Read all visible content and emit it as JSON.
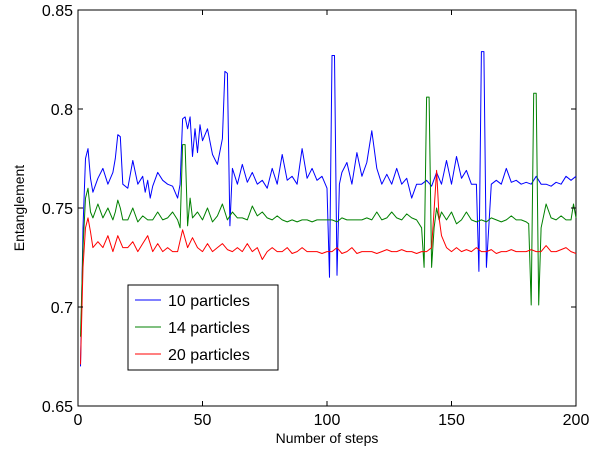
{
  "chart_data": {
    "type": "line",
    "title": "",
    "xlabel": "Number of steps",
    "ylabel": "Entanglement",
    "xlim": [
      0,
      200
    ],
    "ylim": [
      0.65,
      0.85
    ],
    "xticks": [
      0,
      50,
      100,
      150,
      200
    ],
    "yticks": [
      0.65,
      0.7,
      0.75,
      0.8,
      0.85
    ],
    "xtick_labels": [
      "0",
      "50",
      "100",
      "150",
      "200"
    ],
    "ytick_labels": [
      "0.65",
      "0.7",
      "0.75",
      "0.8",
      "0.85"
    ],
    "grid": false,
    "legend_position": "lower-left",
    "series": [
      {
        "name": "10 particles",
        "color": "#0000ff",
        "x": [
          1,
          2,
          3,
          4,
          5,
          6,
          8,
          10,
          12,
          14,
          15,
          16,
          17,
          18,
          20,
          22,
          24,
          26,
          27,
          28,
          29,
          30,
          32,
          34,
          36,
          38,
          40,
          41,
          42,
          43,
          44,
          45,
          46,
          47,
          48,
          49,
          50,
          52,
          54,
          56,
          58,
          59,
          60,
          61,
          62,
          64,
          66,
          68,
          70,
          72,
          74,
          76,
          78,
          80,
          82,
          84,
          86,
          88,
          90,
          92,
          94,
          96,
          98,
          100,
          101,
          102,
          103,
          104,
          105,
          106,
          108,
          110,
          112,
          114,
          116,
          118,
          120,
          122,
          124,
          126,
          128,
          130,
          132,
          134,
          136,
          138,
          140,
          142,
          144,
          146,
          148,
          150,
          152,
          154,
          156,
          158,
          160,
          161,
          162,
          163,
          164,
          166,
          168,
          170,
          172,
          174,
          176,
          178,
          180,
          182,
          184,
          186,
          188,
          190,
          192,
          194,
          196,
          198,
          200
        ],
        "y": [
          0.67,
          0.74,
          0.775,
          0.78,
          0.765,
          0.758,
          0.765,
          0.77,
          0.762,
          0.768,
          0.775,
          0.787,
          0.786,
          0.762,
          0.76,
          0.774,
          0.762,
          0.766,
          0.758,
          0.764,
          0.755,
          0.761,
          0.768,
          0.764,
          0.762,
          0.761,
          0.755,
          0.762,
          0.795,
          0.796,
          0.79,
          0.796,
          0.776,
          0.79,
          0.778,
          0.792,
          0.784,
          0.79,
          0.777,
          0.772,
          0.785,
          0.819,
          0.818,
          0.741,
          0.77,
          0.762,
          0.772,
          0.763,
          0.768,
          0.762,
          0.764,
          0.76,
          0.77,
          0.762,
          0.777,
          0.764,
          0.766,
          0.762,
          0.78,
          0.765,
          0.77,
          0.764,
          0.766,
          0.76,
          0.715,
          0.827,
          0.827,
          0.716,
          0.762,
          0.768,
          0.773,
          0.762,
          0.778,
          0.766,
          0.773,
          0.789,
          0.77,
          0.762,
          0.767,
          0.762,
          0.77,
          0.762,
          0.765,
          0.755,
          0.762,
          0.762,
          0.764,
          0.761,
          0.768,
          0.762,
          0.774,
          0.762,
          0.776,
          0.765,
          0.769,
          0.762,
          0.762,
          0.718,
          0.829,
          0.829,
          0.72,
          0.762,
          0.764,
          0.762,
          0.77,
          0.763,
          0.764,
          0.762,
          0.763,
          0.762,
          0.766,
          0.762,
          0.762,
          0.761,
          0.763,
          0.762,
          0.766,
          0.764,
          0.766
        ]
      },
      {
        "name": "14 particles",
        "color": "#008000",
        "x": [
          1,
          2,
          3,
          4,
          5,
          6,
          8,
          10,
          12,
          14,
          15,
          16,
          17,
          18,
          20,
          22,
          24,
          26,
          28,
          30,
          32,
          34,
          36,
          38,
          40,
          41,
          42,
          43,
          44,
          45,
          46,
          48,
          50,
          52,
          54,
          56,
          58,
          60,
          62,
          64,
          66,
          68,
          70,
          72,
          74,
          76,
          78,
          80,
          82,
          84,
          86,
          88,
          90,
          92,
          94,
          96,
          98,
          100,
          102,
          104,
          106,
          108,
          110,
          112,
          114,
          116,
          118,
          120,
          122,
          124,
          126,
          128,
          130,
          132,
          134,
          136,
          138,
          139,
          140,
          141,
          142,
          143,
          144,
          145,
          146,
          148,
          150,
          152,
          154,
          156,
          158,
          160,
          162,
          164,
          166,
          168,
          170,
          172,
          174,
          176,
          178,
          180,
          181,
          182,
          183,
          184,
          185,
          186,
          188,
          190,
          192,
          194,
          196,
          198,
          199,
          200
        ],
        "y": [
          0.685,
          0.73,
          0.755,
          0.76,
          0.748,
          0.745,
          0.752,
          0.745,
          0.75,
          0.744,
          0.748,
          0.754,
          0.75,
          0.744,
          0.744,
          0.75,
          0.743,
          0.746,
          0.744,
          0.744,
          0.748,
          0.744,
          0.745,
          0.748,
          0.744,
          0.74,
          0.782,
          0.782,
          0.741,
          0.755,
          0.745,
          0.748,
          0.744,
          0.75,
          0.743,
          0.746,
          0.752,
          0.744,
          0.748,
          0.745,
          0.745,
          0.744,
          0.751,
          0.746,
          0.748,
          0.745,
          0.744,
          0.746,
          0.744,
          0.743,
          0.744,
          0.743,
          0.744,
          0.744,
          0.743,
          0.744,
          0.744,
          0.744,
          0.744,
          0.743,
          0.745,
          0.744,
          0.744,
          0.744,
          0.744,
          0.745,
          0.744,
          0.748,
          0.744,
          0.745,
          0.748,
          0.745,
          0.744,
          0.747,
          0.745,
          0.744,
          0.74,
          0.72,
          0.806,
          0.806,
          0.72,
          0.74,
          0.75,
          0.744,
          0.748,
          0.744,
          0.748,
          0.742,
          0.744,
          0.748,
          0.744,
          0.743,
          0.744,
          0.743,
          0.745,
          0.744,
          0.743,
          0.744,
          0.746,
          0.744,
          0.744,
          0.743,
          0.742,
          0.701,
          0.808,
          0.808,
          0.701,
          0.74,
          0.752,
          0.745,
          0.744,
          0.746,
          0.744,
          0.744,
          0.752,
          0.745
        ]
      },
      {
        "name": "20 particles",
        "color": "#ff0000",
        "x": [
          1,
          2,
          3,
          4,
          5,
          6,
          8,
          10,
          12,
          14,
          16,
          18,
          20,
          22,
          24,
          26,
          28,
          30,
          32,
          34,
          36,
          38,
          40,
          42,
          44,
          46,
          48,
          50,
          52,
          54,
          56,
          58,
          60,
          62,
          64,
          66,
          68,
          70,
          72,
          74,
          76,
          78,
          80,
          82,
          84,
          86,
          88,
          90,
          92,
          94,
          96,
          98,
          100,
          102,
          104,
          106,
          108,
          110,
          112,
          114,
          116,
          118,
          120,
          122,
          124,
          126,
          128,
          130,
          132,
          134,
          136,
          138,
          140,
          142,
          143,
          144,
          145,
          146,
          148,
          150,
          152,
          154,
          156,
          158,
          160,
          162,
          164,
          166,
          168,
          170,
          172,
          174,
          176,
          178,
          180,
          182,
          184,
          186,
          188,
          190,
          192,
          194,
          196,
          198,
          200
        ],
        "y": [
          0.671,
          0.72,
          0.74,
          0.745,
          0.738,
          0.73,
          0.733,
          0.73,
          0.736,
          0.728,
          0.736,
          0.73,
          0.73,
          0.733,
          0.728,
          0.732,
          0.736,
          0.728,
          0.732,
          0.728,
          0.73,
          0.728,
          0.728,
          0.739,
          0.73,
          0.735,
          0.73,
          0.728,
          0.732,
          0.728,
          0.73,
          0.732,
          0.729,
          0.728,
          0.73,
          0.728,
          0.732,
          0.728,
          0.73,
          0.724,
          0.728,
          0.73,
          0.728,
          0.728,
          0.73,
          0.727,
          0.728,
          0.73,
          0.728,
          0.728,
          0.728,
          0.727,
          0.728,
          0.728,
          0.73,
          0.727,
          0.728,
          0.73,
          0.727,
          0.728,
          0.728,
          0.728,
          0.727,
          0.728,
          0.729,
          0.728,
          0.728,
          0.729,
          0.728,
          0.728,
          0.727,
          0.728,
          0.728,
          0.73,
          0.749,
          0.769,
          0.745,
          0.736,
          0.73,
          0.728,
          0.73,
          0.728,
          0.729,
          0.728,
          0.73,
          0.728,
          0.728,
          0.729,
          0.727,
          0.728,
          0.728,
          0.729,
          0.728,
          0.728,
          0.728,
          0.729,
          0.728,
          0.728,
          0.731,
          0.728,
          0.728,
          0.729,
          0.73,
          0.728,
          0.727
        ]
      }
    ]
  }
}
